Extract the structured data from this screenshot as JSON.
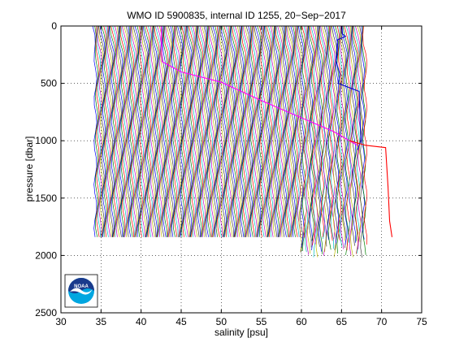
{
  "chart_data": {
    "type": "line",
    "title": "WMO ID 5900835, internal ID 1255, 20−Sep−2017",
    "xlabel": "salinity [psu]",
    "ylabel": "pressure [dbar]",
    "xlim": [
      30,
      75
    ],
    "ylim": [
      0,
      2500
    ],
    "y_reversed": true,
    "grid": true,
    "x_ticks": [
      30,
      35,
      40,
      45,
      50,
      55,
      60,
      65,
      70,
      75
    ],
    "y_ticks": [
      0,
      500,
      1000,
      1500,
      2000,
      2500
    ],
    "offset_profiles": {
      "count": 220,
      "salinity_start": 34.3,
      "salinity_end": 68.0,
      "pressure_bottom": 1840,
      "colors": [
        "#0000ff",
        "#008000",
        "#ff0000",
        "#00bfbf",
        "#bf00bf",
        "#bfbf00",
        "#404040"
      ]
    },
    "series": [
      {
        "color": "#ff00ff",
        "x": [
          42.5,
          42.6,
          45.0,
          50.0,
          55.0,
          60.0,
          64.0,
          67.0
        ],
        "y": [
          0,
          310,
          400,
          490,
          650,
          800,
          920,
          1040
        ]
      },
      {
        "color": "#0000cc",
        "x": [
          65.0,
          65.1,
          65.5,
          64.5,
          64.3,
          64.8,
          64.6,
          67.2,
          67.4,
          67.0
        ],
        "y": [
          0,
          70,
          90,
          120,
          300,
          420,
          500,
          570,
          1000,
          1080
        ]
      },
      {
        "color": "#ff0000",
        "x": [
          66.0,
          68.0,
          70.5,
          70.8,
          71.0,
          71.3
        ],
        "y": [
          1000,
          1040,
          1060,
          1400,
          1700,
          1840
        ]
      }
    ]
  },
  "logo": {
    "text": "NOAA",
    "colors": {
      "top": "#1a3a8c",
      "bottom": "#00a6e0",
      "bird": "#ffffff"
    }
  }
}
